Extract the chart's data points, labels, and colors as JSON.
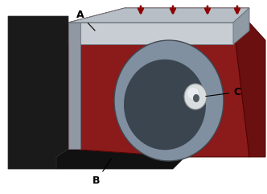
{
  "title": "",
  "background_color": "#ffffff",
  "label_A": "A",
  "label_B": "B",
  "label_C": "C",
  "arrow_color": "#8b0000",
  "body_red": "#8b1a1a",
  "body_gray": "#a0a8b0",
  "body_dark": "#222222",
  "body_black": "#111111",
  "body_light_gray": "#c8cdd4",
  "hole_gray": "#8090a0",
  "knob_white": "#d8dde0",
  "line_color": "#000000",
  "annotation_fontsize": 9,
  "figsize": [
    3.32,
    2.41
  ],
  "dpi": 100
}
